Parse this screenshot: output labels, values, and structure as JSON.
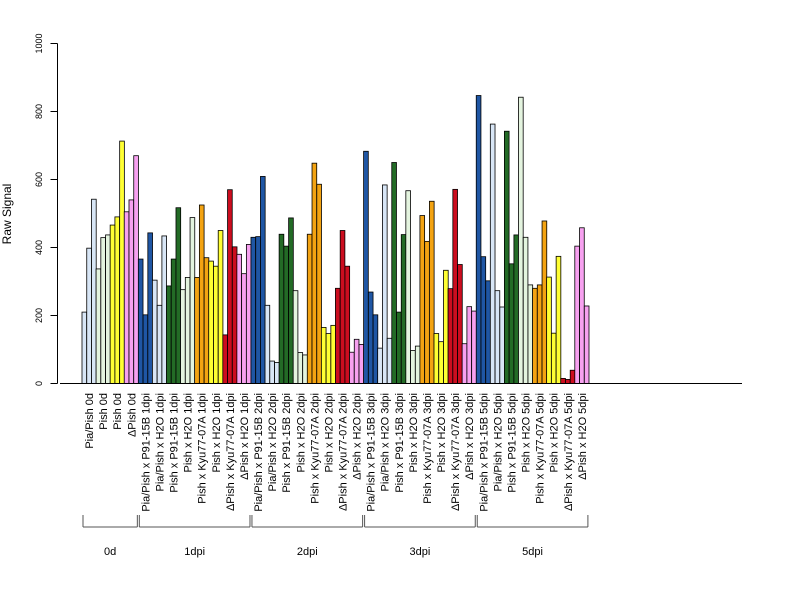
{
  "chart_data": {
    "type": "bar",
    "title": "",
    "xlabel": "",
    "ylabel": "Raw Signal",
    "ylim": [
      0,
      1000
    ],
    "yticks": [
      0,
      200,
      400,
      600,
      800,
      1000
    ],
    "grid": false,
    "legend": "none",
    "bars_per_group": 3,
    "categories": [
      "Pia/Pish 0d",
      "Pish 0d",
      "Pish 0d",
      "ΔPish 0d",
      "Pia/Pish x P91-15B 1dpi",
      "Pia/Pish x H2O 1dpi",
      "Pish x P91-15B 1dpi",
      "Pish x H2O 1dpi",
      "Pish x Kyu77-07A 1dpi",
      "Pish x H2O 1dpi",
      "ΔPish x Kyu77-07A 1dpi",
      "ΔPish x H2O 1dpi",
      "Pia/Pish x P91-15B 2dpi",
      "Pia/Pish x H2O 2dpi",
      "Pish x P91-15B 2dpi",
      "Pish x H2O 2dpi",
      "Pish x Kyu77-07A 2dpi",
      "Pish x H2O 2dpi",
      "ΔPish x Kyu77-07A 2dpi",
      "ΔPish x H2O 2dpi",
      "Pia/Pish x P91-15B 3dpi",
      "Pia/Pish x H2O 3dpi",
      "Pish x P91-15B 3dpi",
      "Pish x H2O 3dpi",
      "Pish x Kyu77-07A 3dpi",
      "Pish x H2O 3dpi",
      "ΔPish x Kyu77-07A 3dpi",
      "ΔPish x H2O 3dpi",
      "Pia/Pish x P91-15B 5dpi",
      "Pia/Pish x H2O 5dpi",
      "Pish x P91-15B 5dpi",
      "Pish x H2O 5dpi",
      "Pish x Kyu77-07A 5dpi",
      "Pish x H2O 5dpi",
      "ΔPish x Kyu77-07A 5dpi",
      "ΔPish x H2O 5dpi"
    ],
    "category_colors": [
      "#d8e6f6",
      "#e4f4df",
      "#ffff33",
      "#f7a1f0",
      "#1f56a4",
      "#d8e6f6",
      "#236b26",
      "#e4f4df",
      "#f3a312",
      "#ffff33",
      "#cc0d1f",
      "#f7a1f0",
      "#1f56a4",
      "#d8e6f6",
      "#236b26",
      "#e4f4df",
      "#f3a312",
      "#ffff33",
      "#cc0d1f",
      "#f7a1f0",
      "#1f56a4",
      "#d8e6f6",
      "#236b26",
      "#e4f4df",
      "#f3a312",
      "#ffff33",
      "#cc0d1f",
      "#f7a1f0",
      "#1f56a4",
      "#d8e6f6",
      "#236b26",
      "#e4f4df",
      "#f3a312",
      "#ffff33",
      "#cc0d1f",
      "#f7a1f0"
    ],
    "values": [
      [
        210,
        398,
        542
      ],
      [
        337,
        429,
        437
      ],
      [
        466,
        490,
        713
      ],
      [
        505,
        540,
        670
      ],
      [
        366,
        202,
        443
      ],
      [
        304,
        230,
        434
      ],
      [
        287,
        366,
        517
      ],
      [
        276,
        312,
        488
      ],
      [
        312,
        525,
        370
      ],
      [
        360,
        345,
        450
      ],
      [
        143,
        570,
        402
      ],
      [
        380,
        323,
        409
      ],
      [
        430,
        432,
        609
      ],
      [
        230,
        66,
        62
      ],
      [
        439,
        404,
        487
      ],
      [
        273,
        91,
        84
      ],
      [
        439,
        648,
        586
      ],
      [
        165,
        147,
        171
      ],
      [
        280,
        450,
        345
      ],
      [
        92,
        130,
        115
      ],
      [
        683,
        269,
        202
      ],
      [
        104,
        584,
        133
      ],
      [
        650,
        210,
        438
      ],
      [
        567,
        97,
        110
      ],
      [
        494,
        418,
        536
      ],
      [
        147,
        123,
        333
      ],
      [
        279,
        571,
        350
      ],
      [
        117,
        226,
        213
      ],
      [
        847,
        373,
        302
      ],
      [
        763,
        273,
        225
      ],
      [
        742,
        352,
        437
      ],
      [
        842,
        430,
        290
      ],
      [
        280,
        290,
        478
      ],
      [
        313,
        148,
        374
      ],
      [
        15,
        12,
        39
      ],
      [
        404,
        458,
        228
      ]
    ],
    "groups": [
      {
        "label": "0d",
        "from": 0,
        "to": 3
      },
      {
        "label": "1dpi",
        "from": 4,
        "to": 11
      },
      {
        "label": "2dpi",
        "from": 12,
        "to": 19
      },
      {
        "label": "3dpi",
        "from": 20,
        "to": 27
      },
      {
        "label": "5dpi",
        "from": 28,
        "to": 35
      }
    ]
  }
}
